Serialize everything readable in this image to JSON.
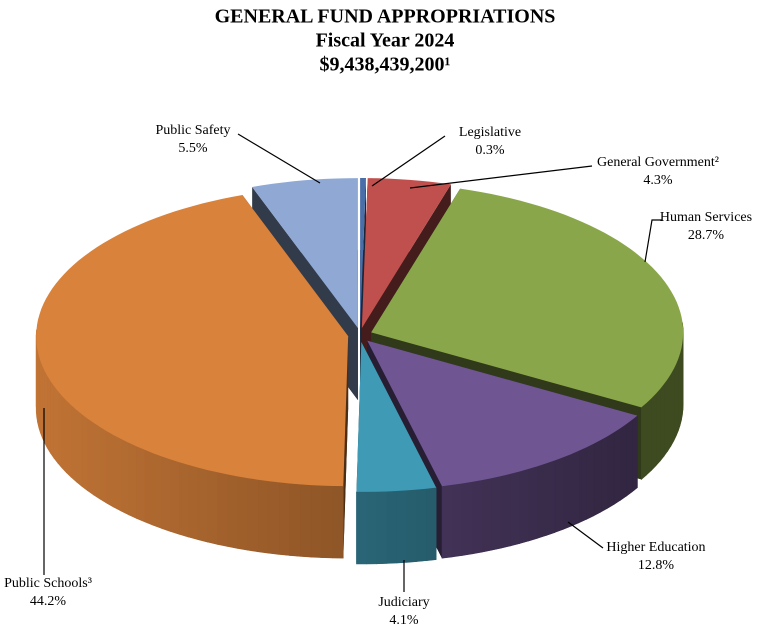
{
  "chart_data": {
    "type": "pie3d",
    "title": "GENERAL FUND APPROPRIATIONS",
    "subtitle": "Fiscal Year 2024",
    "total": "$9,438,439,200¹",
    "categories": [
      "Legislative",
      "General Government²",
      "Human Services",
      "Higher Education",
      "Judiciary",
      "Public Schools³",
      "Public Safety"
    ],
    "values": [
      0.3,
      4.3,
      28.7,
      12.8,
      4.1,
      44.2,
      5.5
    ],
    "value_labels": [
      "0.3%",
      "4.3%",
      "28.7%",
      "12.8%",
      "4.1%",
      "44.2%",
      "5.5%"
    ],
    "colors": [
      "#4a6fa8",
      "#c0504d",
      "#8aa64a",
      "#6f5592",
      "#3f9bb5",
      "#d9823b",
      "#8fa9d4"
    ]
  }
}
